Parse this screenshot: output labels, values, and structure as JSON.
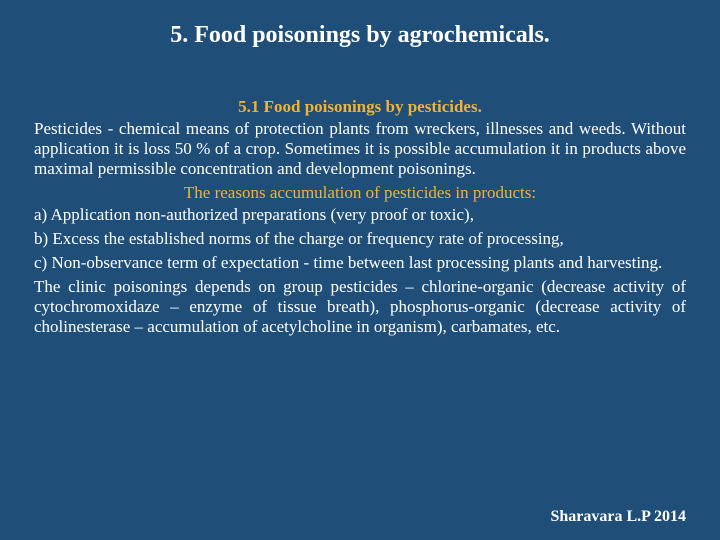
{
  "colors": {
    "background": "#1f4e79",
    "text": "#ffffff",
    "accent": "#f2b233"
  },
  "title": "5. Food poisonings by agrochemicals.",
  "subheader": "5.1 Food poisonings by pesticides.",
  "para1": "Pesticides - chemical means of protection plants from wreckers, illnesses and weeds. Without application it is loss 50 % of a crop. Sometimes it is possible accumulation it in products above maximal permissible concentration and development poisonings.",
  "callout": "The reasons accumulation of pesticides in products:",
  "item_a": "a) Application non-authorized preparations (very proof or toxic),",
  "item_b": "b) Excess the established norms of the charge or frequency rate of processing,",
  "item_c": "c) Non-observance term of expectation - time between last processing plants and harvesting.",
  "para2": "The clinic poisonings depends on group pesticides – chlorine-organic (decrease activity of cytochromoxidaze – enzyme of tissue breath), phosphorus-organic (decrease activity of cholinesterase – accumulation of acetylcholine in organism), carbamates, etc.",
  "footer": "Sharavara L.P 2014"
}
